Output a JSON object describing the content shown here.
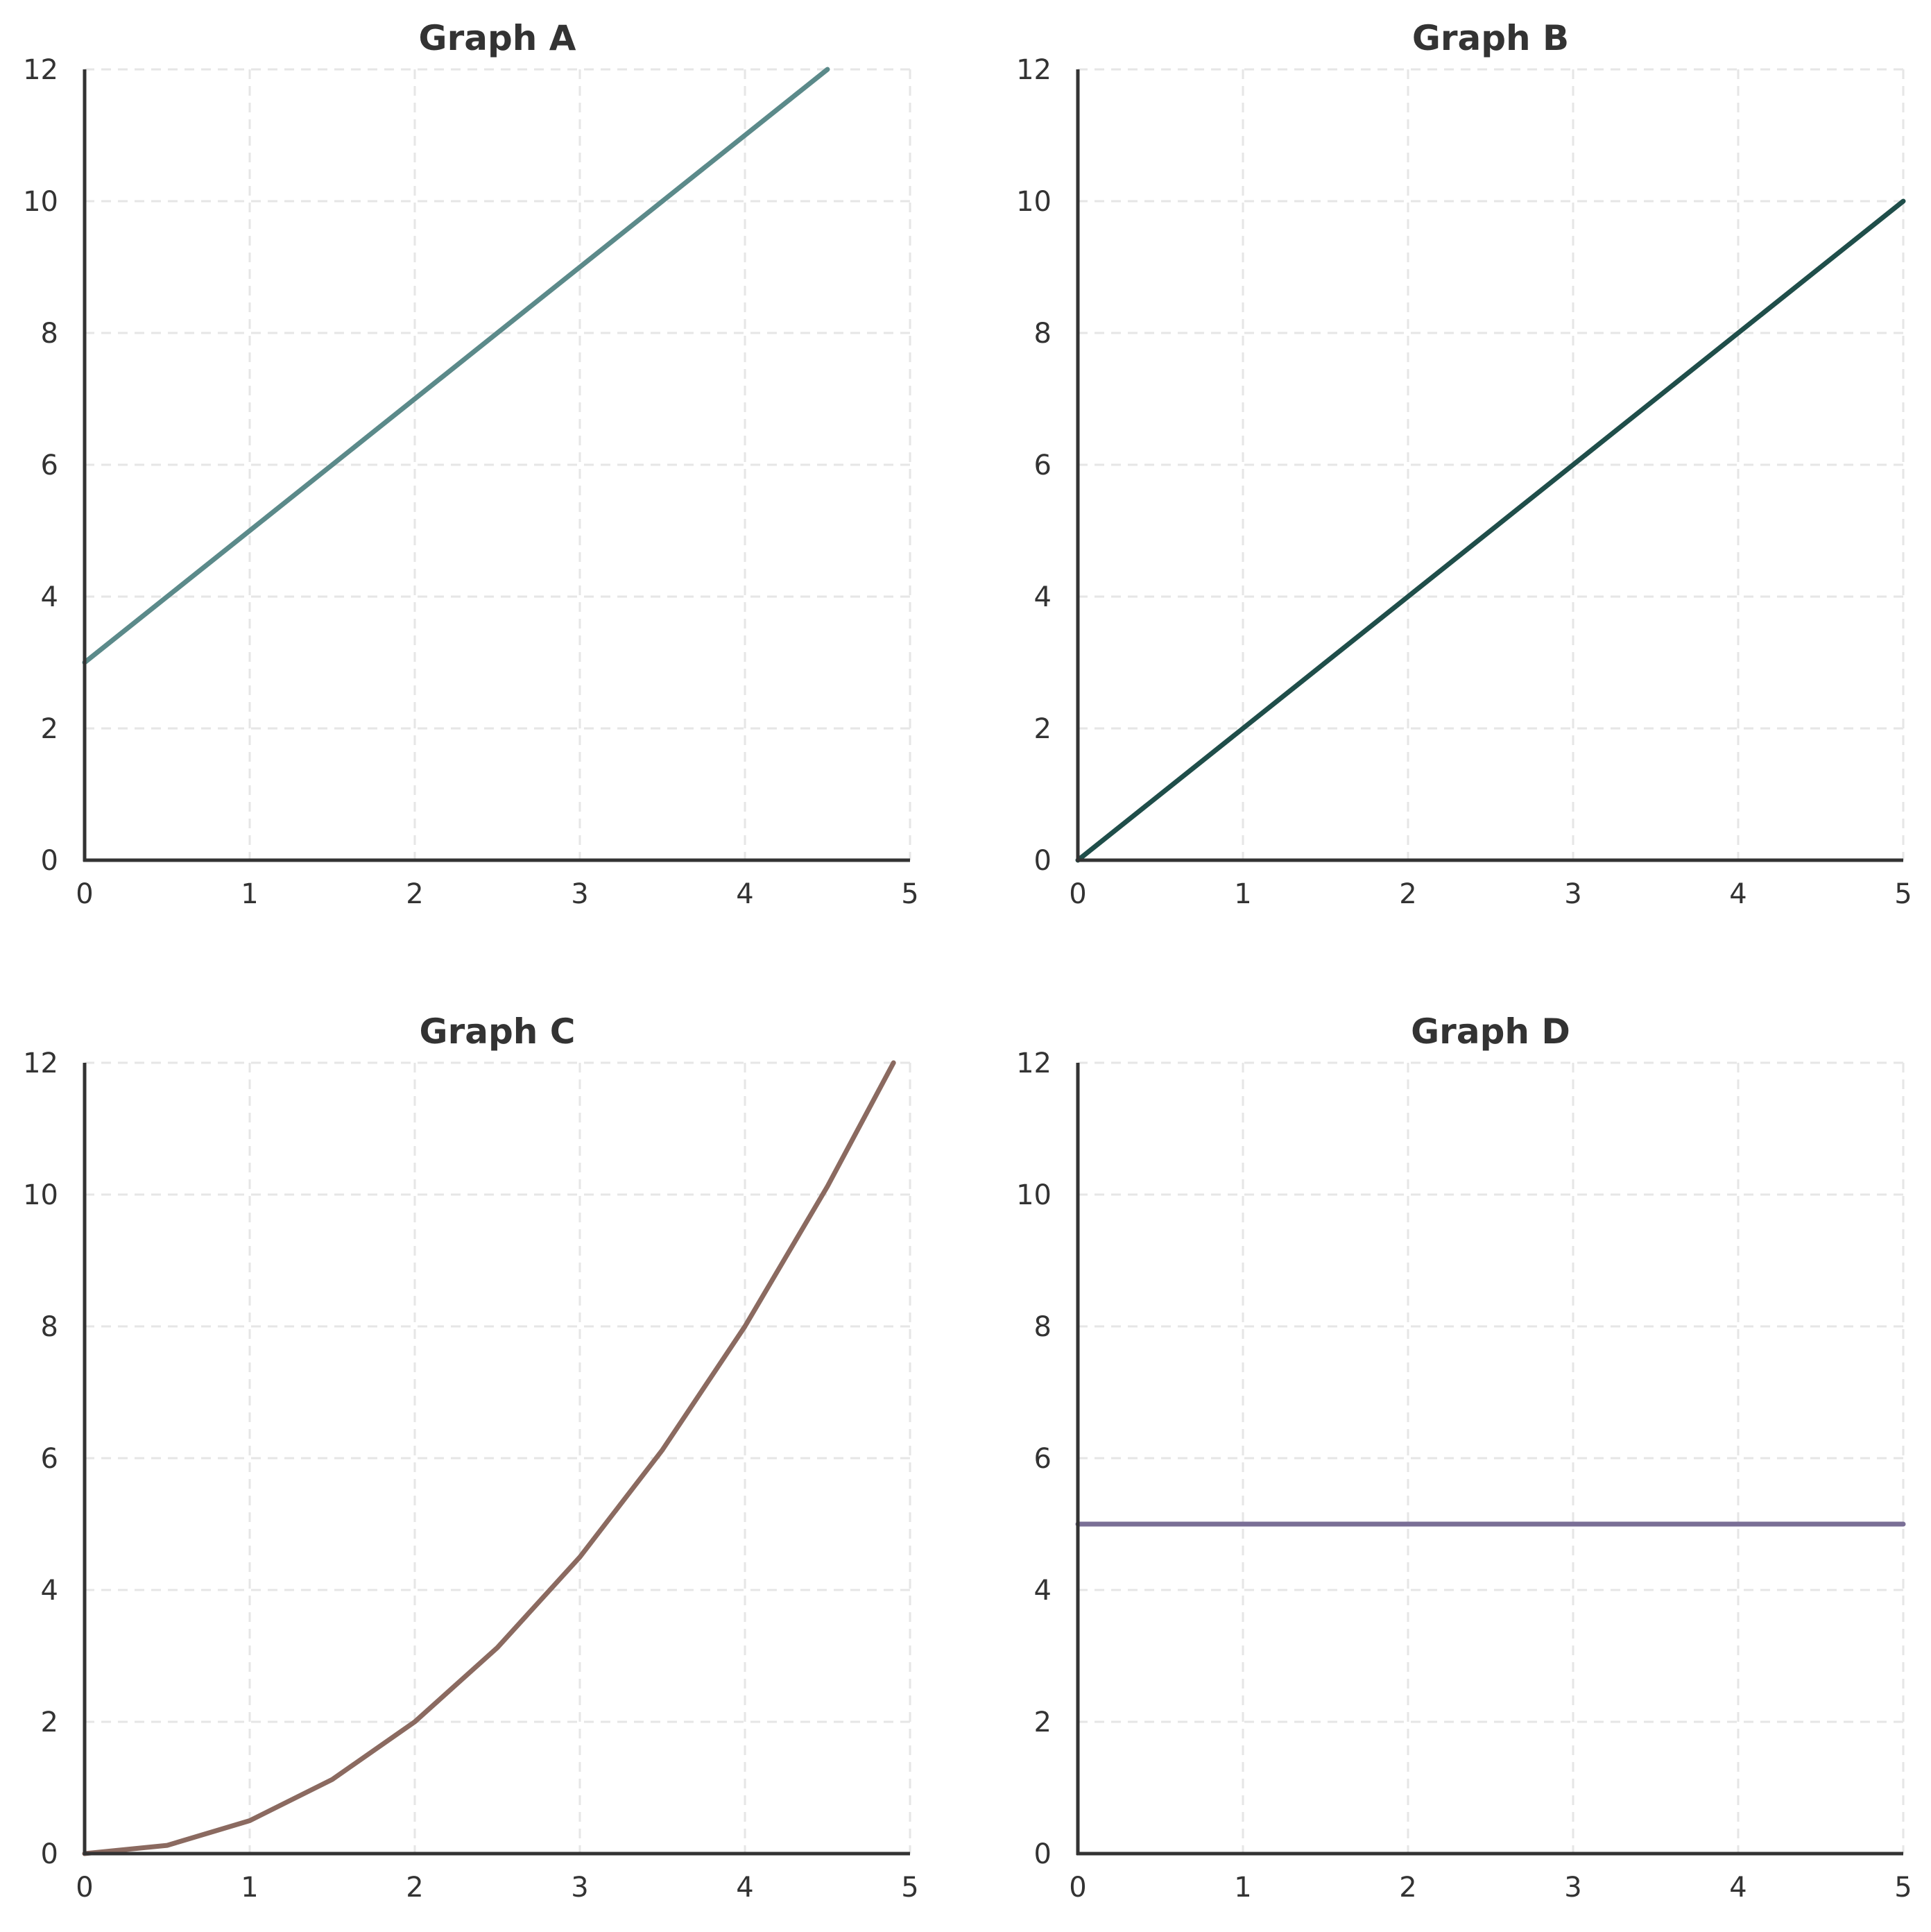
{
  "chart_data": [
    {
      "type": "line",
      "title": "Graph A",
      "xlim": [
        0,
        5
      ],
      "ylim": [
        0,
        12
      ],
      "xticks": [
        "0",
        "1",
        "2",
        "3",
        "4",
        "5"
      ],
      "yticks": [
        "0",
        "2",
        "4",
        "6",
        "8",
        "10",
        "12"
      ],
      "grid": true,
      "series": [
        {
          "color": "#5b8a8a",
          "x": [
            0,
            4.5
          ],
          "y": [
            3,
            12
          ]
        }
      ]
    },
    {
      "type": "line",
      "title": "Graph B",
      "xlim": [
        0,
        5
      ],
      "ylim": [
        0,
        12
      ],
      "xticks": [
        "0",
        "1",
        "2",
        "3",
        "4",
        "5"
      ],
      "yticks": [
        "0",
        "2",
        "4",
        "6",
        "8",
        "10",
        "12"
      ],
      "grid": true,
      "series": [
        {
          "color": "#1f4e4a",
          "x": [
            0,
            5
          ],
          "y": [
            0,
            10
          ]
        }
      ]
    },
    {
      "type": "line",
      "title": "Graph C",
      "xlim": [
        0,
        5
      ],
      "ylim": [
        0,
        12
      ],
      "xticks": [
        "0",
        "1",
        "2",
        "3",
        "4",
        "5"
      ],
      "yticks": [
        "0",
        "2",
        "4",
        "6",
        "8",
        "10",
        "12"
      ],
      "grid": true,
      "series": [
        {
          "color": "#8b6a60",
          "x": [
            0,
            0.5,
            1,
            1.5,
            2,
            2.5,
            3,
            3.5,
            4,
            4.5,
            4.9
          ],
          "y": [
            0,
            0.125,
            0.5,
            1.125,
            2,
            3.125,
            4.5,
            6.125,
            8,
            10.125,
            12
          ]
        }
      ]
    },
    {
      "type": "line",
      "title": "Graph D",
      "xlim": [
        0,
        5
      ],
      "ylim": [
        0,
        12
      ],
      "xticks": [
        "0",
        "1",
        "2",
        "3",
        "4",
        "5"
      ],
      "yticks": [
        "0",
        "2",
        "4",
        "6",
        "8",
        "10",
        "12"
      ],
      "grid": true,
      "series": [
        {
          "color": "#7a6f96",
          "x": [
            0,
            5
          ],
          "y": [
            5,
            5
          ]
        }
      ]
    }
  ]
}
